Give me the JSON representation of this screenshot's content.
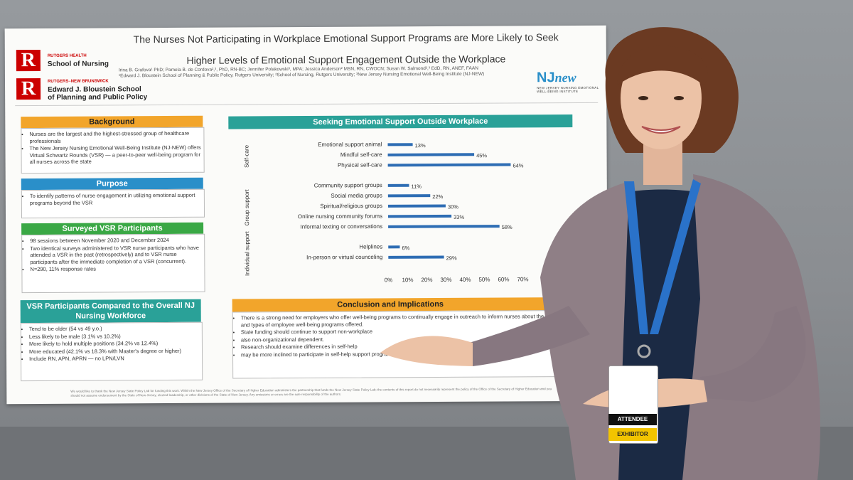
{
  "poster": {
    "title_line1": "The Nurses Not Participating in Workplace Emotional Support Programs are More Likely to Seek",
    "title_line2": "Higher Levels of Emotional Support Engagement Outside the Workplace",
    "authors": "Irina B. Grafova¹ PhD; Pamela B. de Cordova²,³, PhD, RN-BC; Jennifer Polakowski³, MPA; Jessica Anderson² MSN, RN, CWOCN; Susan W. Salmond²,³ EdD, RN, ANEF, FAAN",
    "affiliations": "¹Edward J. Bloustein School of Planning & Public Policy, Rutgers University; ²School of Nursing, Rutgers University; ³New Jersey Nursing Emotional Well-Being Institute (NJ-NEW)",
    "logo1": {
      "letter": "R",
      "small": "RUTGERS HEALTH",
      "big": "School of Nursing"
    },
    "logo2": {
      "letter": "R",
      "small": "RUTGERS–NEW BRUNSWICK",
      "big1": "Edward J. Bloustein School",
      "big2": "of Planning and Public Policy"
    },
    "njnew": {
      "nj": "NJ",
      "new": "new",
      "sub1": "NEW JERSEY NURSING EMOTIONAL",
      "sub2": "WELL-BEING INSTITUTE"
    },
    "background": {
      "title": "Background",
      "items": [
        "Nurses are the largest and the highest-stressed group of healthcare professionals",
        "The New Jersey Nursing Emotional Well-Being Institute (NJ-NEW) offers Virtual Schwartz Rounds (VSR) — a peer-to-peer well-being program for all nurses across the state"
      ]
    },
    "purpose": {
      "title": "Purpose",
      "items": [
        "To identify patterns of nurse engagement in utilizing emotional support programs beyond the VSR"
      ]
    },
    "surveyed": {
      "title": "Surveyed VSR Participants",
      "items": [
        "98 sessions between November 2020 and December 2024",
        "Two identical surveys administered to VSR nurse participants who have attended a VSR in the past (retrospectively) and to VSR nurse participants after the immediate completion of a VSR (concurrent).",
        "N=290, 11% response rates"
      ]
    },
    "compared": {
      "title": "VSR Participants Compared to the Overall NJ Nursing Workforce",
      "items": [
        "Tend to be older (54 vs 49 y.o.)",
        "Less likely to be male (3.1% vs 10.2%)",
        "More likely to hold multiple positions (34.2% vs 12.4%)",
        "More educated (42.1% vs 18.3% with Master's degree or higher)",
        "Include RN, APN, APRN — no LPN/LVN"
      ]
    },
    "conclusion": {
      "title": "Conclusion and Implications",
      "items": [
        "There is a strong need for employers who offer well-being programs to continually engage in outreach to inform nurses about the availability and types of employee well-being programs offered.",
        "State funding should continue to support non-workplace",
        "also non-organizational dependent.",
        "Research should examine differences in self-help",
        "may be more inclined to participate in self-help support programs because of stig"
      ]
    },
    "footer": "We would like to thank the New Jersey State Policy Lab for funding this work. Within the New Jersey Office of the Secretary of Higher Education administers the partnership that funds the New Jersey State Policy Lab; the contents of this report do not necessarily represent the policy of the Office of the Secretary of Higher Education and you should not assume endorsement by the State of New Jersey, elected leadership, or other divisions of the State of New Jersey. Any omissions or errors are the sole responsibility of the authors.",
    "chart_data": {
      "type": "bar",
      "title": "Seeking Emotional Support Outside Workplace",
      "orientation": "horizontal",
      "groups": [
        {
          "name": "Self-care",
          "categories": [
            "Emotional support animal",
            "Mindful self-care",
            "Physical self-care"
          ],
          "values": [
            13,
            45,
            64
          ]
        },
        {
          "name": "Group support",
          "categories": [
            "Community support groups",
            "Social media groups",
            "Spiritual/religious groups",
            "Online nursing community forums",
            "Informal texting or conversations"
          ],
          "values": [
            11,
            22,
            30,
            33,
            58
          ]
        },
        {
          "name": "Individual support",
          "categories": [
            "Helplines",
            "In-person or virtual counceling"
          ],
          "values": [
            6,
            29
          ]
        }
      ],
      "xlim": [
        0,
        70
      ],
      "xticks": [
        "0%",
        "10%",
        "20%",
        "30%",
        "40%",
        "50%",
        "60%",
        "70%"
      ],
      "value_suffix": "%",
      "bar_color": "#2e6db4",
      "grid": false
    }
  },
  "badge": {
    "attendee": "ATTENDEE",
    "exhibitor": "EXHIBITOR"
  },
  "colors": {
    "background_header": "#f2a52b",
    "purpose_header": "#2a8fc9",
    "surveyed_header": "#3aa845",
    "compared_header": "#2aa198",
    "rutgers_red": "#cc0000"
  }
}
